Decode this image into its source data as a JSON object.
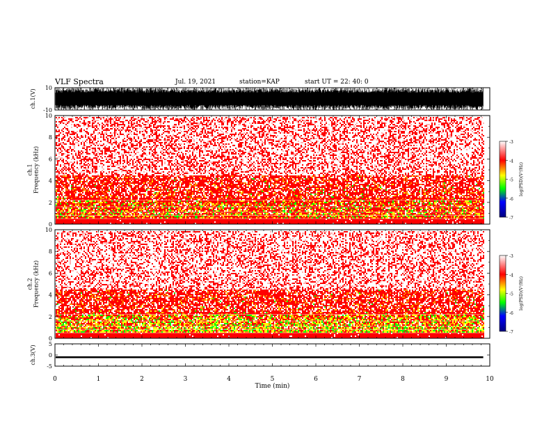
{
  "header": {
    "title": "VLF Spectra",
    "date": "Jul. 19, 2021",
    "station": "station=KAP",
    "start_ut": "start UT = 22: 40: 0"
  },
  "chart_data": [
    {
      "type": "line",
      "ylabel": "ch.1(V)",
      "ylim": [
        -10,
        10
      ],
      "y_ticks": [
        "10",
        "-10"
      ],
      "xlim": [
        0,
        10
      ],
      "note": "dense waveform filling nearly full range"
    },
    {
      "type": "heatmap",
      "ylabel": "ch.1\nFrequency (kHz)",
      "ylim": [
        0,
        10
      ],
      "y_ticks": [
        "0",
        "2",
        "4",
        "6",
        "8",
        "10"
      ],
      "xlim": [
        0,
        10
      ],
      "colorbar": {
        "label": "log(PSD)(V²/Hz)",
        "range": [
          -7,
          -3
        ],
        "ticks": [
          "-3",
          "-4",
          "-5",
          "-6",
          "-7"
        ]
      }
    },
    {
      "type": "heatmap",
      "ylabel": "ch.2\nFrequency (kHz)",
      "ylim": [
        0,
        10
      ],
      "y_ticks": [
        "0",
        "2",
        "4",
        "6",
        "8",
        "10"
      ],
      "xlim": [
        0,
        10
      ],
      "colorbar": {
        "label": "log(PSD)(V²/Hz)",
        "range": [
          -7,
          -3
        ],
        "ticks": [
          "-3",
          "-4",
          "-5",
          "-6",
          "-7"
        ]
      }
    },
    {
      "type": "line",
      "ylabel": "ch.3(V)",
      "ylim": [
        -5,
        5
      ],
      "y_ticks": [
        "5",
        "0",
        "-5"
      ],
      "xlim": [
        0,
        10
      ],
      "x_ticks": [
        "0",
        "1",
        "2",
        "3",
        "4",
        "5",
        "6",
        "7",
        "8",
        "9",
        "10"
      ],
      "xlabel": "Time (min)",
      "note": "thin band near -1 V"
    }
  ],
  "colors": {
    "white": "#ffffff",
    "red": "#ff0000",
    "yellow": "#ffff00",
    "green": "#00ff00",
    "blue": "#0000ff"
  }
}
